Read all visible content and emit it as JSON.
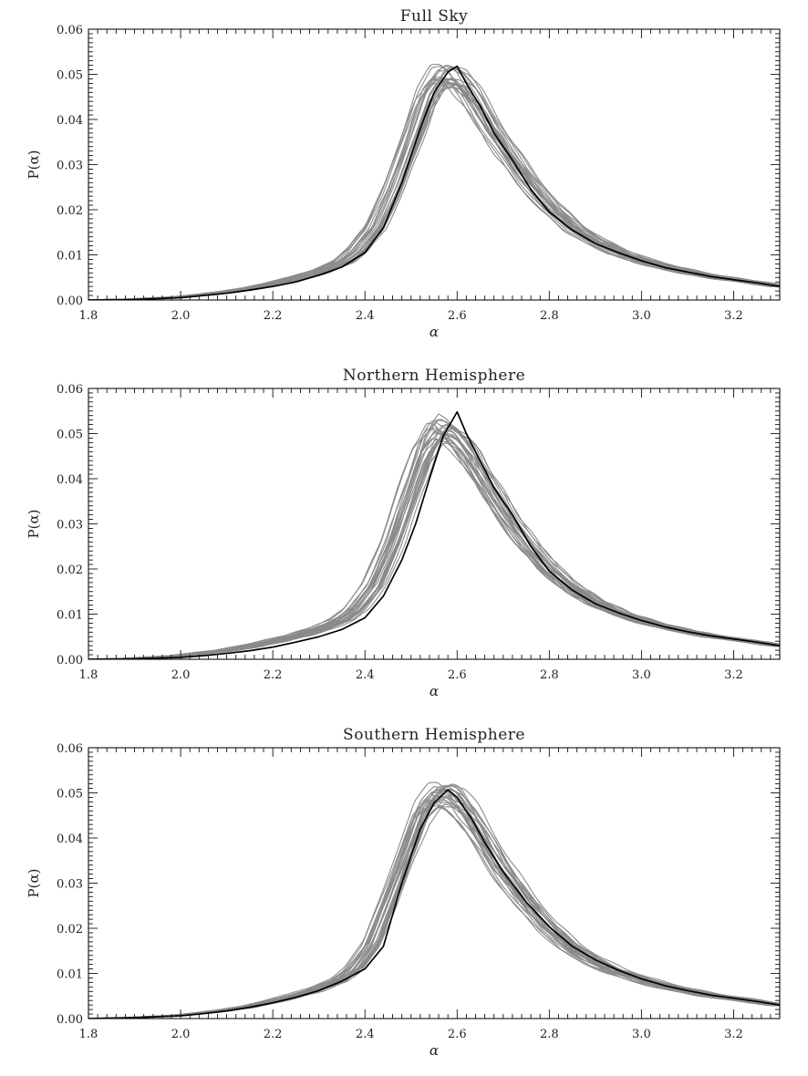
{
  "chart_data": [
    {
      "type": "line",
      "title": "Full Sky",
      "xlabel": "α",
      "ylabel": "P(α)",
      "xlim": [
        1.8,
        3.3
      ],
      "ylim": [
        0.0,
        0.06
      ],
      "xticks": [
        "1.8",
        "2.0",
        "2.2",
        "2.4",
        "2.6",
        "2.8",
        "3.0",
        "3.2"
      ],
      "yticks": [
        "0.00",
        "0.01",
        "0.02",
        "0.03",
        "0.04",
        "0.05",
        "0.06"
      ],
      "grid": false,
      "legend": "none",
      "colors": {
        "simulations": "#8a8a8a",
        "observed": "#000000"
      },
      "simulation_count": 24,
      "observed": {
        "x": [
          1.8,
          1.9,
          2.0,
          2.05,
          2.1,
          2.15,
          2.2,
          2.25,
          2.3,
          2.35,
          2.4,
          2.44,
          2.48,
          2.52,
          2.55,
          2.58,
          2.6,
          2.62,
          2.65,
          2.68,
          2.72,
          2.76,
          2.8,
          2.85,
          2.9,
          2.95,
          3.0,
          3.05,
          3.1,
          3.15,
          3.2,
          3.25,
          3.3
        ],
        "y": [
          0.0,
          0.0001,
          0.0005,
          0.001,
          0.0015,
          0.0022,
          0.003,
          0.004,
          0.0055,
          0.0073,
          0.0105,
          0.016,
          0.026,
          0.038,
          0.046,
          0.0505,
          0.0518,
          0.048,
          0.043,
          0.037,
          0.031,
          0.0245,
          0.0195,
          0.0155,
          0.0125,
          0.0105,
          0.0087,
          0.0072,
          0.0062,
          0.0052,
          0.0045,
          0.0038,
          0.003
        ]
      },
      "simulation_mean": {
        "x": [
          1.8,
          1.9,
          2.0,
          2.05,
          2.1,
          2.15,
          2.2,
          2.25,
          2.3,
          2.35,
          2.38,
          2.42,
          2.46,
          2.5,
          2.53,
          2.56,
          2.58,
          2.6,
          2.63,
          2.66,
          2.7,
          2.75,
          2.8,
          2.85,
          2.9,
          2.95,
          3.0,
          3.05,
          3.1,
          3.15,
          3.2,
          3.25,
          3.3
        ],
        "y": [
          0.0,
          0.0002,
          0.0007,
          0.0012,
          0.0018,
          0.0026,
          0.0036,
          0.0048,
          0.0063,
          0.0085,
          0.011,
          0.016,
          0.025,
          0.036,
          0.045,
          0.0497,
          0.05,
          0.0488,
          0.045,
          0.04,
          0.0335,
          0.0265,
          0.0205,
          0.016,
          0.0128,
          0.0105,
          0.0087,
          0.0073,
          0.0062,
          0.0052,
          0.0045,
          0.0038,
          0.003
        ]
      }
    },
    {
      "type": "line",
      "title": "Northern Hemisphere",
      "xlabel": "α",
      "ylabel": "P(α)",
      "xlim": [
        1.8,
        3.3
      ],
      "ylim": [
        0.0,
        0.06
      ],
      "xticks": [
        "1.8",
        "2.0",
        "2.2",
        "2.4",
        "2.6",
        "2.8",
        "3.0",
        "3.2"
      ],
      "yticks": [
        "0.00",
        "0.01",
        "0.02",
        "0.03",
        "0.04",
        "0.05",
        "0.06"
      ],
      "grid": false,
      "legend": "none",
      "colors": {
        "simulations": "#8a8a8a",
        "observed": "#000000"
      },
      "simulation_count": 24,
      "observed": {
        "x": [
          1.8,
          1.9,
          2.0,
          2.05,
          2.1,
          2.15,
          2.2,
          2.25,
          2.3,
          2.35,
          2.4,
          2.44,
          2.48,
          2.51,
          2.54,
          2.57,
          2.6,
          2.62,
          2.65,
          2.68,
          2.72,
          2.76,
          2.8,
          2.85,
          2.9,
          2.95,
          3.0,
          3.05,
          3.1,
          3.15,
          3.2,
          3.25,
          3.3
        ],
        "y": [
          0.0,
          0.0001,
          0.0004,
          0.0008,
          0.0013,
          0.0019,
          0.0027,
          0.0038,
          0.005,
          0.0066,
          0.0092,
          0.014,
          0.022,
          0.03,
          0.04,
          0.0495,
          0.0548,
          0.05,
          0.044,
          0.038,
          0.032,
          0.025,
          0.0195,
          0.0153,
          0.0123,
          0.0103,
          0.0086,
          0.0072,
          0.0061,
          0.0052,
          0.0045,
          0.0038,
          0.003
        ]
      },
      "simulation_mean": {
        "x": [
          1.8,
          1.9,
          2.0,
          2.05,
          2.1,
          2.15,
          2.2,
          2.25,
          2.3,
          2.35,
          2.38,
          2.42,
          2.46,
          2.5,
          2.53,
          2.56,
          2.58,
          2.6,
          2.63,
          2.66,
          2.7,
          2.75,
          2.8,
          2.85,
          2.9,
          2.95,
          3.0,
          3.05,
          3.1,
          3.15,
          3.2,
          3.25,
          3.3
        ],
        "y": [
          0.0,
          0.0002,
          0.0008,
          0.0014,
          0.002,
          0.0029,
          0.004,
          0.0052,
          0.0067,
          0.0088,
          0.0112,
          0.0165,
          0.026,
          0.038,
          0.047,
          0.0515,
          0.051,
          0.0492,
          0.0452,
          0.04,
          0.0332,
          0.026,
          0.0202,
          0.0158,
          0.0127,
          0.0104,
          0.0087,
          0.0073,
          0.0062,
          0.0052,
          0.0045,
          0.0038,
          0.003
        ]
      }
    },
    {
      "type": "line",
      "title": "Southern Hemisphere",
      "xlabel": "α",
      "ylabel": "P(α)",
      "xlim": [
        1.8,
        3.3
      ],
      "ylim": [
        0.0,
        0.06
      ],
      "xticks": [
        "1.8",
        "2.0",
        "2.2",
        "2.4",
        "2.6",
        "2.8",
        "3.0",
        "3.2"
      ],
      "yticks": [
        "0.00",
        "0.01",
        "0.02",
        "0.03",
        "0.04",
        "0.05",
        "0.06"
      ],
      "grid": false,
      "legend": "none",
      "colors": {
        "simulations": "#8a8a8a",
        "observed": "#000000"
      },
      "simulation_count": 24,
      "observed": {
        "x": [
          1.8,
          1.9,
          2.0,
          2.05,
          2.1,
          2.15,
          2.2,
          2.25,
          2.3,
          2.35,
          2.4,
          2.44,
          2.48,
          2.52,
          2.55,
          2.58,
          2.6,
          2.63,
          2.66,
          2.7,
          2.75,
          2.8,
          2.85,
          2.9,
          2.95,
          3.0,
          3.05,
          3.1,
          3.15,
          3.2,
          3.25,
          3.3
        ],
        "y": [
          0.0,
          0.0002,
          0.0006,
          0.0011,
          0.0017,
          0.0025,
          0.0035,
          0.0047,
          0.0062,
          0.0083,
          0.011,
          0.016,
          0.03,
          0.042,
          0.0478,
          0.0507,
          0.049,
          0.0445,
          0.039,
          0.0325,
          0.0258,
          0.0203,
          0.016,
          0.013,
          0.0107,
          0.0088,
          0.0073,
          0.0062,
          0.0052,
          0.0045,
          0.0038,
          0.003
        ]
      },
      "simulation_mean": {
        "x": [
          1.8,
          1.9,
          2.0,
          2.05,
          2.1,
          2.15,
          2.2,
          2.25,
          2.3,
          2.35,
          2.38,
          2.42,
          2.46,
          2.5,
          2.53,
          2.56,
          2.58,
          2.6,
          2.63,
          2.66,
          2.7,
          2.75,
          2.8,
          2.85,
          2.9,
          2.95,
          3.0,
          3.05,
          3.1,
          3.15,
          3.2,
          3.25,
          3.3
        ],
        "y": [
          0.0,
          0.0002,
          0.0007,
          0.0012,
          0.0018,
          0.0026,
          0.0037,
          0.005,
          0.0065,
          0.0086,
          0.011,
          0.0165,
          0.027,
          0.038,
          0.046,
          0.0495,
          0.0497,
          0.0485,
          0.0448,
          0.0398,
          0.0332,
          0.0262,
          0.0203,
          0.0158,
          0.0127,
          0.0104,
          0.0087,
          0.0073,
          0.0062,
          0.0052,
          0.0045,
          0.0038,
          0.003
        ]
      }
    }
  ]
}
